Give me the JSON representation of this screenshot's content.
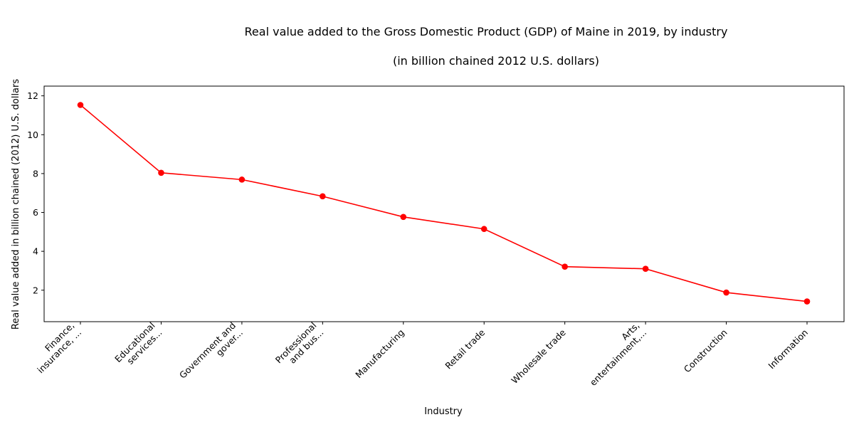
{
  "chart_data": {
    "type": "line",
    "title": "Real value added to the Gross Domestic Product (GDP) of Maine in 2019, by industry",
    "subtitle": "(in billion chained 2012 U.S. dollars)",
    "xlabel": "Industry",
    "ylabel": "Real value added in billion chained (2012) U.S. dollars",
    "categories": [
      [
        "Finance,",
        "insurance, ..."
      ],
      [
        "Educational",
        "services..."
      ],
      [
        "Government and",
        "gover..."
      ],
      [
        "Professional",
        "and bus..."
      ],
      [
        "Manufacturing"
      ],
      [
        "Retail trade"
      ],
      [
        "Wholesale trade"
      ],
      [
        "Arts,",
        "entertainment,..."
      ],
      [
        "Construction"
      ],
      [
        "Information"
      ]
    ],
    "values": [
      11.53,
      8.04,
      7.69,
      6.83,
      5.77,
      5.15,
      3.21,
      3.1,
      1.88,
      1.42
    ],
    "ylim": [
      0.38,
      12.5
    ],
    "yticks": [
      2,
      4,
      6,
      8,
      10,
      12
    ],
    "grid": false,
    "color": "#ff0000",
    "marker": "circle"
  }
}
